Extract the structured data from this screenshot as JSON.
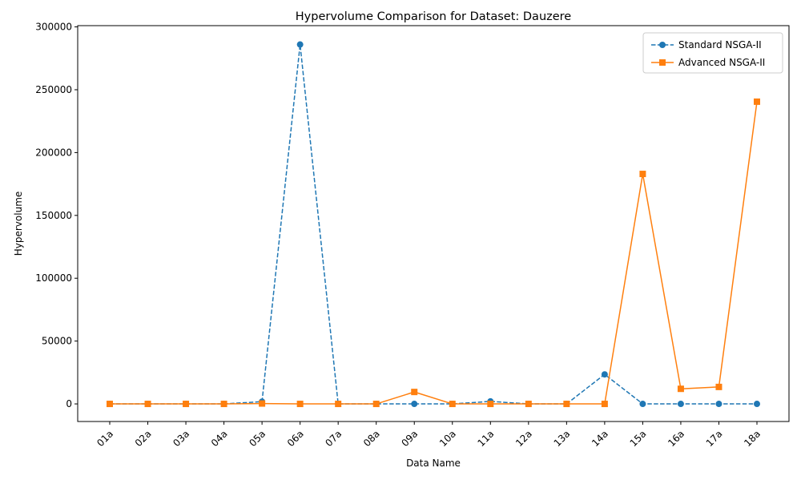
{
  "chart_data": {
    "type": "line",
    "title": "Hypervolume Comparison for Dataset: Dauzere",
    "xlabel": "Data Name",
    "ylabel": "Hypervolume",
    "categories": [
      "01a",
      "02a",
      "03a",
      "04a",
      "05a",
      "06a",
      "07a",
      "08a",
      "09a",
      "10a",
      "11a",
      "12a",
      "13a",
      "14a",
      "15a",
      "16a",
      "17a",
      "18a"
    ],
    "ylim": [
      -14000,
      301000
    ],
    "yticks": [
      0,
      50000,
      100000,
      150000,
      200000,
      250000,
      300000
    ],
    "ytick_labels": [
      "0",
      "50000",
      "100000",
      "150000",
      "200000",
      "250000",
      "300000"
    ],
    "grid": false,
    "legend_position": "top-right",
    "series": [
      {
        "name": "Standard NSGA-II",
        "color": "#1f77b4",
        "linestyle": "dashed",
        "marker": "circle",
        "values": [
          0,
          0,
          0,
          0,
          1800,
          286000,
          0,
          0,
          0,
          0,
          2000,
          0,
          0,
          23500,
          0,
          0,
          0,
          0
        ]
      },
      {
        "name": "Advanced NSGA-II",
        "color": "#ff7f0e",
        "linestyle": "solid",
        "marker": "square",
        "values": [
          0,
          0,
          0,
          0,
          300,
          0,
          0,
          0,
          9500,
          0,
          0,
          0,
          0,
          0,
          183000,
          12000,
          13500,
          240500
        ]
      }
    ]
  }
}
